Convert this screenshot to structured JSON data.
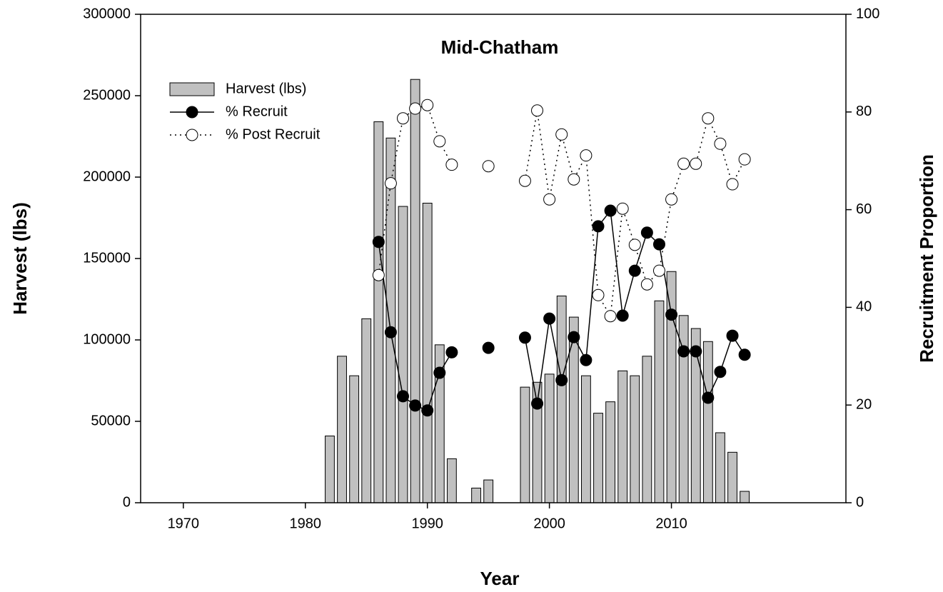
{
  "chart_data": {
    "type": "combo",
    "title": "Mid-Chatham",
    "xlabel": "Year",
    "ylabel": "Harvest (lbs)",
    "y2label": "Recruitment Proportion",
    "xlim": [
      1966.5,
      2024.3
    ],
    "xticks": [
      1970,
      1980,
      1990,
      2000,
      2010
    ],
    "ylim": [
      0,
      300000
    ],
    "yticks": [
      0,
      50000,
      100000,
      150000,
      200000,
      250000,
      300000
    ],
    "y2lim": [
      0,
      100
    ],
    "y2ticks": [
      0,
      20,
      40,
      60,
      80,
      100
    ],
    "legend": "upper left",
    "series": [
      {
        "name": "Harvest (lbs)",
        "type": "bar",
        "color": "#c0c0c0",
        "x": [
          1982,
          1983,
          1984,
          1985,
          1986,
          1987,
          1988,
          1989,
          1990,
          1991,
          1992,
          1994,
          1995,
          1998,
          1999,
          2000,
          2001,
          2002,
          2003,
          2004,
          2005,
          2006,
          2007,
          2008,
          2009,
          2010,
          2011,
          2012,
          2013,
          2014,
          2015,
          2016
        ],
        "values": [
          41000,
          90000,
          78000,
          113000,
          234000,
          224000,
          182000,
          260000,
          184000,
          97000,
          27000,
          9000,
          14000,
          71000,
          74000,
          79000,
          127000,
          114000,
          78000,
          55000,
          62000,
          81000,
          78000,
          90000,
          124000,
          142000,
          115000,
          107000,
          99000,
          43000,
          31000,
          7000
        ]
      },
      {
        "name": "% Recruit",
        "type": "line",
        "axis": "y2",
        "color": "#000000",
        "marker_fill": "#000000",
        "dash": "solid",
        "x": [
          1986,
          1987,
          1988,
          1989,
          1990,
          1991,
          1992,
          1993,
          1994,
          1995,
          1996,
          1997,
          1998,
          1999,
          2000,
          2001,
          2002,
          2003,
          2004,
          2005,
          2006,
          2007,
          2008,
          2009,
          2010,
          2011,
          2012,
          2013,
          2014,
          2015,
          2016
        ],
        "values": [
          53.4,
          34.9,
          21.8,
          19.9,
          18.9,
          26.6,
          30.8,
          null,
          null,
          31.7,
          null,
          null,
          33.8,
          20.3,
          37.7,
          25.1,
          33.9,
          29.2,
          56.6,
          59.8,
          38.3,
          47.5,
          55.3,
          52.9,
          38.5,
          31.0,
          31.0,
          21.5,
          26.8,
          34.2,
          30.3
        ]
      },
      {
        "name": "% Post Recruit",
        "type": "line",
        "axis": "y2",
        "color": "#000000",
        "marker_fill": "#ffffff",
        "dash": "dotted",
        "x": [
          1986,
          1987,
          1988,
          1989,
          1990,
          1991,
          1992,
          1993,
          1994,
          1995,
          1996,
          1997,
          1998,
          1999,
          2000,
          2001,
          2002,
          2003,
          2004,
          2005,
          2006,
          2007,
          2008,
          2009,
          2010,
          2011,
          2012,
          2013,
          2014,
          2015,
          2016
        ],
        "values": [
          46.6,
          65.4,
          78.7,
          80.7,
          81.4,
          74.0,
          69.2,
          null,
          null,
          68.9,
          null,
          null,
          65.9,
          80.3,
          62.1,
          75.4,
          66.2,
          71.1,
          42.5,
          38.2,
          60.2,
          52.8,
          44.7,
          47.5,
          62.1,
          69.4,
          69.4,
          78.7,
          73.5,
          65.2,
          70.3
        ]
      }
    ]
  }
}
